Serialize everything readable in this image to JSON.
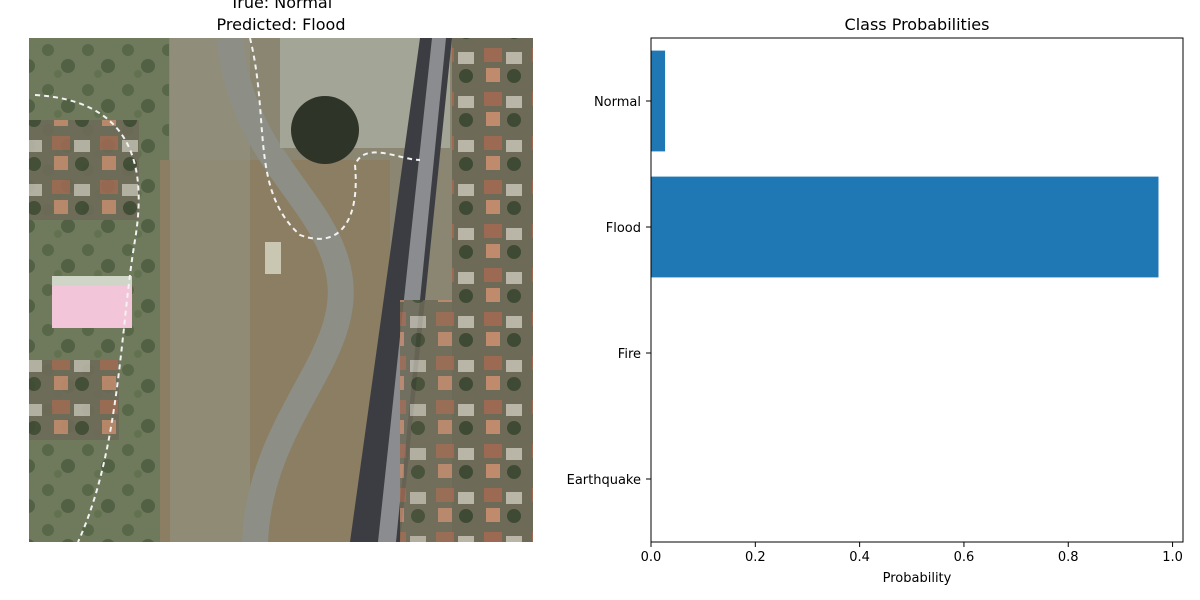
{
  "image_panel": {
    "title_true": "True: Normal",
    "title_predicted": "Predicted: Flood"
  },
  "chart_data": {
    "type": "bar",
    "orientation": "horizontal",
    "title": "Class Probabilities",
    "xlabel": "Probability",
    "ylabel": "",
    "categories": [
      "Normal",
      "Flood",
      "Fire",
      "Earthquake"
    ],
    "values": [
      0.027,
      0.973,
      0.0,
      0.0
    ],
    "xlim": [
      0,
      1.02
    ],
    "xticks": [
      0.0,
      0.2,
      0.4,
      0.6,
      0.8,
      1.0
    ],
    "xtick_labels": [
      "0.0",
      "0.2",
      "0.4",
      "0.6",
      "0.8",
      "1.0"
    ],
    "bar_color": "#1f77b4",
    "grid": false
  }
}
